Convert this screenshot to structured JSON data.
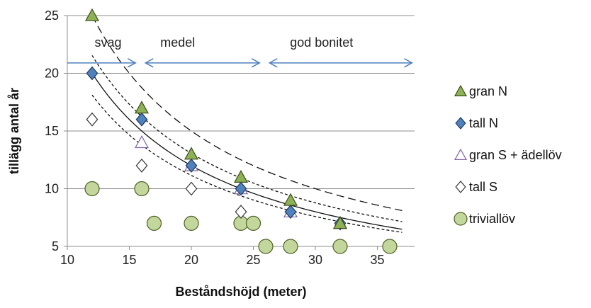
{
  "chart_data": {
    "type": "scatter",
    "xlabel": "Beståndshöjd (meter)",
    "ylabel": "tillägg antal år",
    "xlim": [
      10,
      38
    ],
    "ylim": [
      5,
      25
    ],
    "xticks": [
      10,
      15,
      20,
      25,
      30,
      35
    ],
    "yticks": [
      5,
      10,
      15,
      20,
      25
    ],
    "grid": "horizontal",
    "legend_placement": "right",
    "series": [
      {
        "name": "gran N",
        "marker": "triangle",
        "fill": "#8db255",
        "stroke": "#3b4d1e",
        "points": [
          [
            12,
            25
          ],
          [
            16,
            17
          ],
          [
            20,
            13
          ],
          [
            24,
            11
          ],
          [
            28,
            9
          ],
          [
            32,
            7
          ]
        ]
      },
      {
        "name": "tall N",
        "marker": "diamond",
        "fill": "#4f81bd",
        "stroke": "#1f3a60",
        "points": [
          [
            12,
            20
          ],
          [
            16,
            16
          ],
          [
            20,
            12
          ],
          [
            24,
            10
          ],
          [
            28,
            8
          ],
          [
            32,
            7
          ]
        ]
      },
      {
        "name": "gran S + ädellöv",
        "marker": "triangle-open",
        "fill": "#ffffff",
        "stroke": "#8064a2",
        "points": [
          [
            16,
            14
          ],
          [
            20,
            12
          ],
          [
            24,
            10
          ],
          [
            28,
            8
          ],
          [
            32,
            7
          ]
        ]
      },
      {
        "name": "tall S",
        "marker": "diamond-open",
        "fill": "#ffffff",
        "stroke": "#333333",
        "points": [
          [
            12,
            16
          ],
          [
            16,
            12
          ],
          [
            20,
            10
          ],
          [
            24,
            8
          ],
          [
            28,
            8
          ],
          [
            32,
            7
          ]
        ]
      },
      {
        "name": "triviallöv",
        "marker": "circle",
        "fill": "#c3d69b",
        "stroke": "#4d6228",
        "points": [
          [
            12,
            10
          ],
          [
            16,
            10
          ],
          [
            17,
            7
          ],
          [
            20,
            7
          ],
          [
            24,
            7
          ],
          [
            25,
            7
          ],
          [
            26,
            5
          ],
          [
            28,
            5
          ],
          [
            32,
            5
          ],
          [
            36,
            5
          ]
        ]
      }
    ],
    "trendlines": [
      {
        "style": "long-dash",
        "x_from": 12,
        "x_to": 37,
        "a": 300,
        "b": 1
      },
      {
        "style": "solid",
        "x_from": 12,
        "x_to": 37,
        "a": 240,
        "b": 1
      },
      {
        "style": "short-dash",
        "x_from": 12,
        "x_to": 37,
        "a": 246,
        "b": 0.98
      },
      {
        "style": "short-dash",
        "x_from": 12,
        "x_to": 37,
        "a": 192,
        "b": 0.95
      }
    ],
    "annotations": [
      {
        "text": "svag",
        "x": 12.2,
        "y": 22.3
      },
      {
        "text": "medel",
        "x": 17.5,
        "y": 22.3
      },
      {
        "text": "god bonitet",
        "x": 30.5,
        "y": 22.3
      }
    ],
    "arrows": [
      {
        "from": 10,
        "to": 15.5,
        "y": 20.9,
        "heads": "end"
      },
      {
        "from": 16.3,
        "to": 25.5,
        "y": 20.9,
        "heads": "both"
      },
      {
        "from": 26.3,
        "to": 37.8,
        "y": 20.9,
        "heads": "both"
      }
    ],
    "arrow_color": "#4f81bd"
  }
}
